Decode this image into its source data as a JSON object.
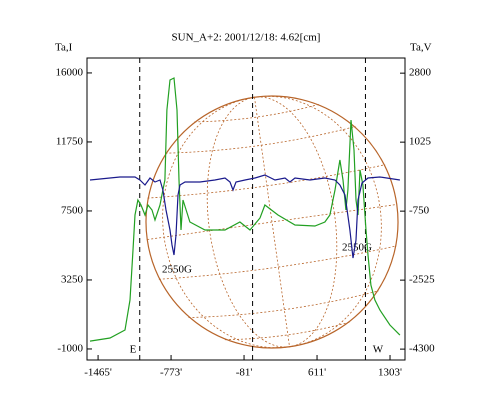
{
  "chart_data": {
    "type": "line",
    "title": "SUN_A+2: 2001/12/18: 4.62[cm]",
    "ylabel": "Ta,I",
    "y2label": "Ta,V",
    "xlim": [
      -1570,
      1445
    ],
    "ylim": [
      -1680,
      16920
    ],
    "y2lim": [
      -4580,
      3190
    ],
    "xticks": [
      {
        "value": -1465,
        "label": "-1465'"
      },
      {
        "value": -773,
        "label": "-773'"
      },
      {
        "value": -81,
        "label": "-81'"
      },
      {
        "value": 611,
        "label": "611'"
      },
      {
        "value": 1303,
        "label": "1303'"
      }
    ],
    "yticks": [
      -1000,
      3250,
      7500,
      11750,
      16000
    ],
    "y2ticks": [
      -4300,
      -2525,
      -750,
      1025,
      2800
    ],
    "vlines": [
      -1070,
      0,
      1070
    ],
    "annotations": [
      "E",
      "W",
      "2550G",
      "2550G"
    ],
    "series": [
      {
        "name": "Ta,I",
        "color": "#22a022",
        "x": [
          -1542,
          -1352,
          -1210,
          -1162,
          -1134,
          -1115,
          -1087,
          -1058,
          -1020,
          -992,
          -954,
          -925,
          -878,
          -850,
          -831,
          -812,
          -783,
          -745,
          -717,
          -698,
          -679,
          -660,
          -594,
          -451,
          -262,
          -120,
          -25,
          70,
          117,
          241,
          402,
          591,
          686,
          733,
          781,
          828,
          857,
          885,
          904,
          933,
          961,
          980,
          999,
          1018,
          1046,
          1075,
          1094,
          1122,
          1160,
          1207,
          1302,
          1397
        ],
        "values": [
          -513,
          -328,
          165,
          2013,
          5093,
          7249,
          8173,
          7865,
          7249,
          7865,
          7557,
          6941,
          7865,
          8789,
          9405,
          13717,
          15565,
          15688,
          13717,
          9405,
          6325,
          8173,
          6818,
          6325,
          6325,
          6818,
          6325,
          7064,
          7865,
          7249,
          6633,
          6571,
          6818,
          7249,
          8789,
          10637,
          9405,
          7557,
          8789,
          13101,
          11253,
          8173,
          7249,
          10021,
          9097,
          6325,
          4785,
          2937,
          2013,
          1397,
          473,
          -144
        ]
      },
      {
        "name": "Ta,V",
        "color": "#1a1a8c",
        "axis": "y2",
        "x": [
          -1542,
          -1258,
          -1115,
          -1068,
          -1020,
          -973,
          -925,
          -878,
          -850,
          -821,
          -783,
          -764,
          -745,
          -726,
          -707,
          -688,
          -641,
          -499,
          -357,
          -262,
          -214,
          -186,
          -157,
          -72,
          23,
          117,
          212,
          307,
          354,
          402,
          544,
          686,
          781,
          828,
          876,
          923,
          952,
          980,
          999,
          1037,
          1094,
          1207,
          1397
        ],
        "values": [
          51,
          128,
          128,
          51,
          -77,
          103,
          0,
          51,
          -206,
          -721,
          -1236,
          -1622,
          -1879,
          -1364,
          -335,
          -77,
          0,
          0,
          51,
          103,
          0,
          -206,
          0,
          51,
          103,
          180,
          51,
          103,
          0,
          103,
          51,
          103,
          51,
          -77,
          -335,
          -1236,
          -1956,
          -1493,
          -463,
          -26,
          103,
          128,
          51
        ]
      }
    ]
  }
}
